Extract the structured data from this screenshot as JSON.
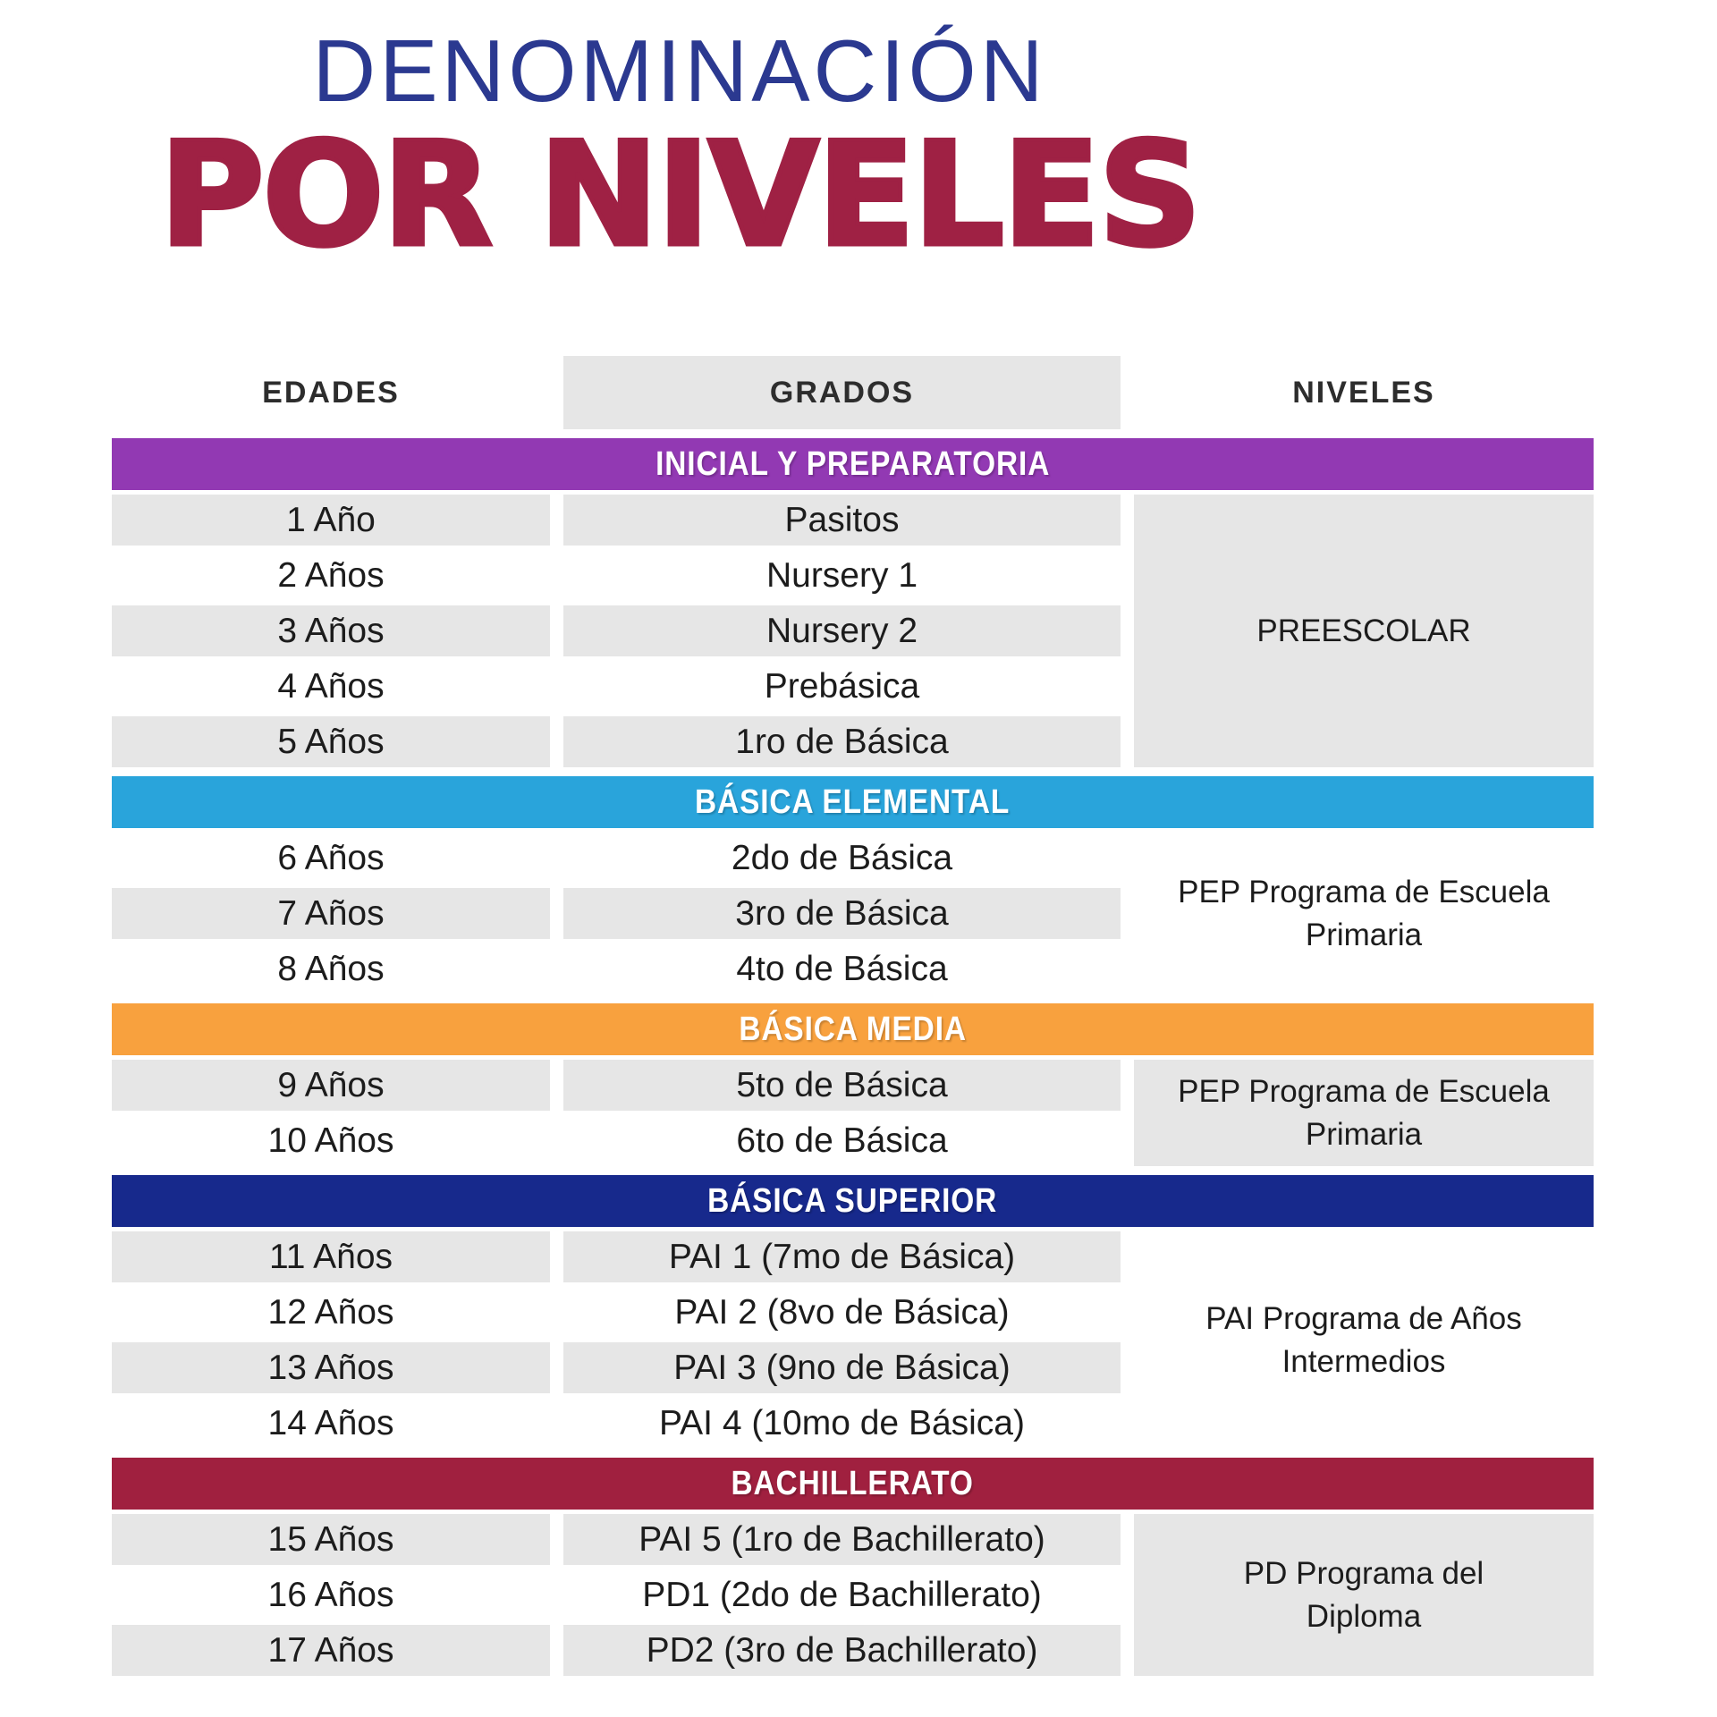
{
  "title": {
    "line1": "DENOMINACIÓN",
    "line2": "POR NIVELES"
  },
  "colors": {
    "title_blue": "#2B3990",
    "title_maroon": "#9F2144",
    "row_gray": "#E6E6E6",
    "body_text": "#1C1C1C"
  },
  "chart_data": {
    "type": "table",
    "title": "DENOMINACIÓN POR NIVELES",
    "columns": {
      "edades": "EDADES",
      "grados": "GRADOS",
      "niveles": "NIVELES"
    },
    "sections": [
      {
        "name": "INICIAL Y PREPARATORIA",
        "color": "#9239B3",
        "nivel": "PREESCOLAR",
        "nivel_shaded": true,
        "rows": [
          {
            "edad": "1 Año",
            "grado": "Pasitos",
            "shaded": true
          },
          {
            "edad": "2 Años",
            "grado": "Nursery 1",
            "shaded": false
          },
          {
            "edad": "3 Años",
            "grado": "Nursery 2",
            "shaded": true
          },
          {
            "edad": "4 Años",
            "grado": "Prebásica",
            "shaded": false
          },
          {
            "edad": "5 Años",
            "grado": "1ro de Básica",
            "shaded": true
          }
        ]
      },
      {
        "name": "BÁSICA ELEMENTAL",
        "color": "#29A4DB",
        "nivel": "PEP Programa de Escuela Primaria",
        "nivel_shaded": false,
        "rows": [
          {
            "edad": "6 Años",
            "grado": "2do de Básica",
            "shaded": false
          },
          {
            "edad": "7 Años",
            "grado": "3ro de Básica",
            "shaded": true
          },
          {
            "edad": "8 Años",
            "grado": "4to de Básica",
            "shaded": false
          }
        ]
      },
      {
        "name": "BÁSICA MEDIA",
        "color": "#F8A13E",
        "nivel": "PEP Programa de Escuela Primaria",
        "nivel_shaded": true,
        "rows": [
          {
            "edad": "9 Años",
            "grado": "5to de Básica",
            "shaded": true
          },
          {
            "edad": "10 Años",
            "grado": "6to de Básica",
            "shaded": false
          }
        ]
      },
      {
        "name": "BÁSICA SUPERIOR",
        "color": "#17298C",
        "nivel": "PAI Programa de Años Intermedios",
        "nivel_shaded": false,
        "rows": [
          {
            "edad": "11 Años",
            "grado": "PAI 1 (7mo de Básica)",
            "shaded": true
          },
          {
            "edad": "12 Años",
            "grado": "PAI 2 (8vo de Básica)",
            "shaded": false
          },
          {
            "edad": "13 Años",
            "grado": "PAI 3 (9no de Básica)",
            "shaded": true
          },
          {
            "edad": "14 Años",
            "grado": "PAI 4 (10mo de Básica)",
            "shaded": false
          }
        ]
      },
      {
        "name": "BACHILLERATO",
        "color": "#A0203F",
        "nivel": "PD Programa del Diploma",
        "nivel_shaded": true,
        "rows": [
          {
            "edad": "15 Años",
            "grado": "PAI 5 (1ro de Bachillerato)",
            "shaded": true
          },
          {
            "edad": "16 Años",
            "grado": "PD1 (2do de Bachillerato)",
            "shaded": false
          },
          {
            "edad": "17 Años",
            "grado": "PD2 (3ro de Bachillerato)",
            "shaded": true
          }
        ]
      }
    ]
  }
}
